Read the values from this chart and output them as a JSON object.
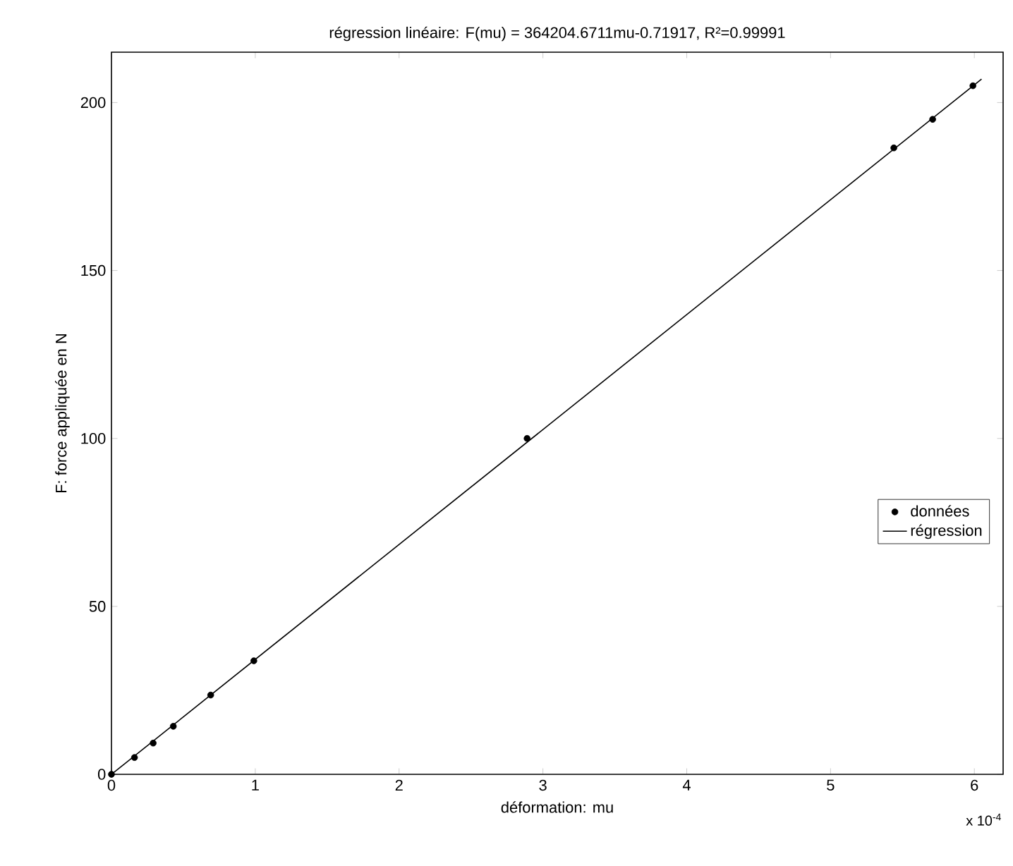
{
  "chart_data": {
    "type": "scatter",
    "title": "régression linéaire:  F(mu) = 364204.6711mu-0.71917,  R²=0.99991",
    "xlabel": "déformation: mu",
    "ylabel": "F: force appliquée en N",
    "annotations": [
      "x 10$^{-4}$"
    ],
    "series": [
      {
        "name": "données",
        "color": "#000000",
        "marker": "circle",
        "x": [
          0,
          0.16,
          0.29,
          0.43,
          0.69,
          0.99,
          2.89,
          5.44,
          5.71,
          5.99
        ],
        "values": [
          0,
          5,
          9.3,
          14.3,
          23.6,
          33.8,
          100,
          186.5,
          195,
          205
        ]
      },
      {
        "name": "régression",
        "type": "line",
        "color": "#000000",
        "marker": "none",
        "line_style": "solid",
        "x": [
          0,
          6.05
        ],
        "values": [
          0,
          207
        ]
      }
    ],
    "xlim": [
      0,
      6.2
    ],
    "ylim": [
      0,
      215
    ],
    "xticks": [
      0,
      1,
      2,
      3,
      4,
      5,
      6
    ],
    "yticks": [
      0,
      50,
      100,
      150,
      200
    ],
    "grid": false,
    "legend": "right"
  }
}
